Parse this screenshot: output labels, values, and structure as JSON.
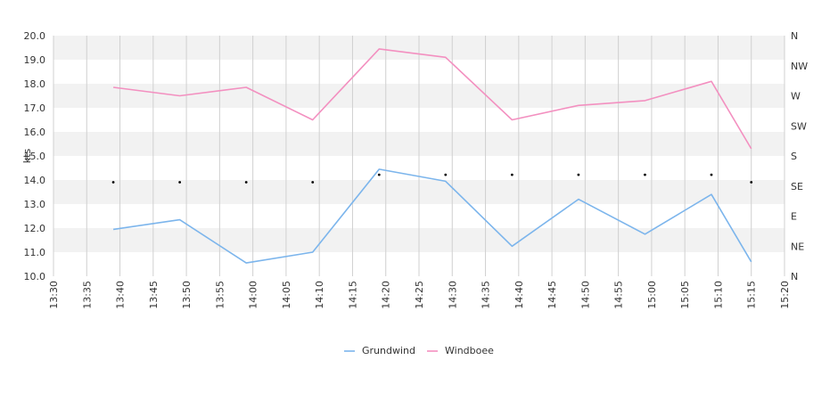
{
  "chart_data": {
    "type": "line",
    "ylabel": "kts",
    "ylim": [
      10.0,
      20.0
    ],
    "y_ticks": [
      "10.0",
      "11.0",
      "12.0",
      "13.0",
      "14.0",
      "15.0",
      "16.0",
      "17.0",
      "18.0",
      "19.0",
      "20.0"
    ],
    "x_ticks": [
      "13:30",
      "13:35",
      "13:40",
      "13:45",
      "13:50",
      "13:55",
      "14:00",
      "14:05",
      "14:10",
      "14:15",
      "14:20",
      "14:25",
      "14:30",
      "14:35",
      "14:40",
      "14:45",
      "14:50",
      "14:55",
      "15:00",
      "15:05",
      "15:10",
      "15:15",
      "15:20"
    ],
    "y2_ticks": [
      "N",
      "NE",
      "E",
      "SE",
      "S",
      "SW",
      "W",
      "NW",
      "N"
    ],
    "grid": true,
    "legend_position": "bottom",
    "series": [
      {
        "name": "Grundwind",
        "color": "#7cb5ec",
        "x": [
          "13:39",
          "13:49",
          "13:59",
          "14:09",
          "14:19",
          "14:29",
          "14:39",
          "14:49",
          "14:59",
          "15:09",
          "15:15"
        ],
        "values": [
          11.95,
          12.35,
          10.55,
          11.0,
          14.45,
          13.95,
          11.25,
          13.2,
          11.75,
          13.4,
          10.6
        ]
      },
      {
        "name": "Windboee",
        "color": "#f390c0",
        "x": [
          "13:39",
          "13:49",
          "13:59",
          "14:09",
          "14:19",
          "14:29",
          "14:39",
          "14:49",
          "14:59",
          "15:09",
          "15:15"
        ],
        "values": [
          17.85,
          17.5,
          17.85,
          16.5,
          19.45,
          19.1,
          16.5,
          17.1,
          17.3,
          18.1,
          15.3
        ]
      }
    ],
    "direction_points": {
      "x": [
        "13:39",
        "13:49",
        "13:59",
        "14:09",
        "14:19",
        "14:29",
        "14:39",
        "14:49",
        "14:59",
        "15:09",
        "15:15"
      ],
      "values": [
        3.125,
        3.125,
        3.125,
        3.125,
        3.375,
        3.375,
        3.375,
        3.375,
        3.375,
        3.375,
        3.125
      ],
      "unit": "compass index (0=N, 1=NE, 2=E, 3=SE, 4=S, 5=SW, 6=W, 7=NW, 8=N)"
    }
  }
}
